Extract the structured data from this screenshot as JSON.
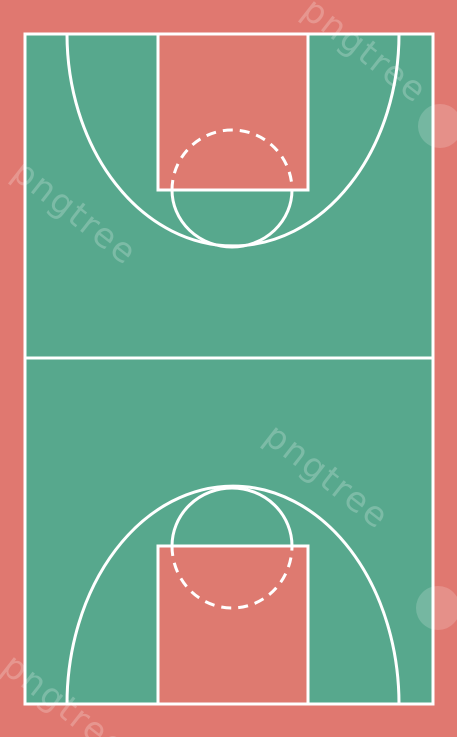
{
  "colors": {
    "outer_surround": "#e07870",
    "court_floor": "#57a88d",
    "painted_key": "#de7a70",
    "lines": "#ffffff"
  },
  "watermark": {
    "text": "pngtree"
  },
  "court": {
    "type": "basketball-full-court",
    "view": "top-down",
    "orientation": "vertical"
  }
}
